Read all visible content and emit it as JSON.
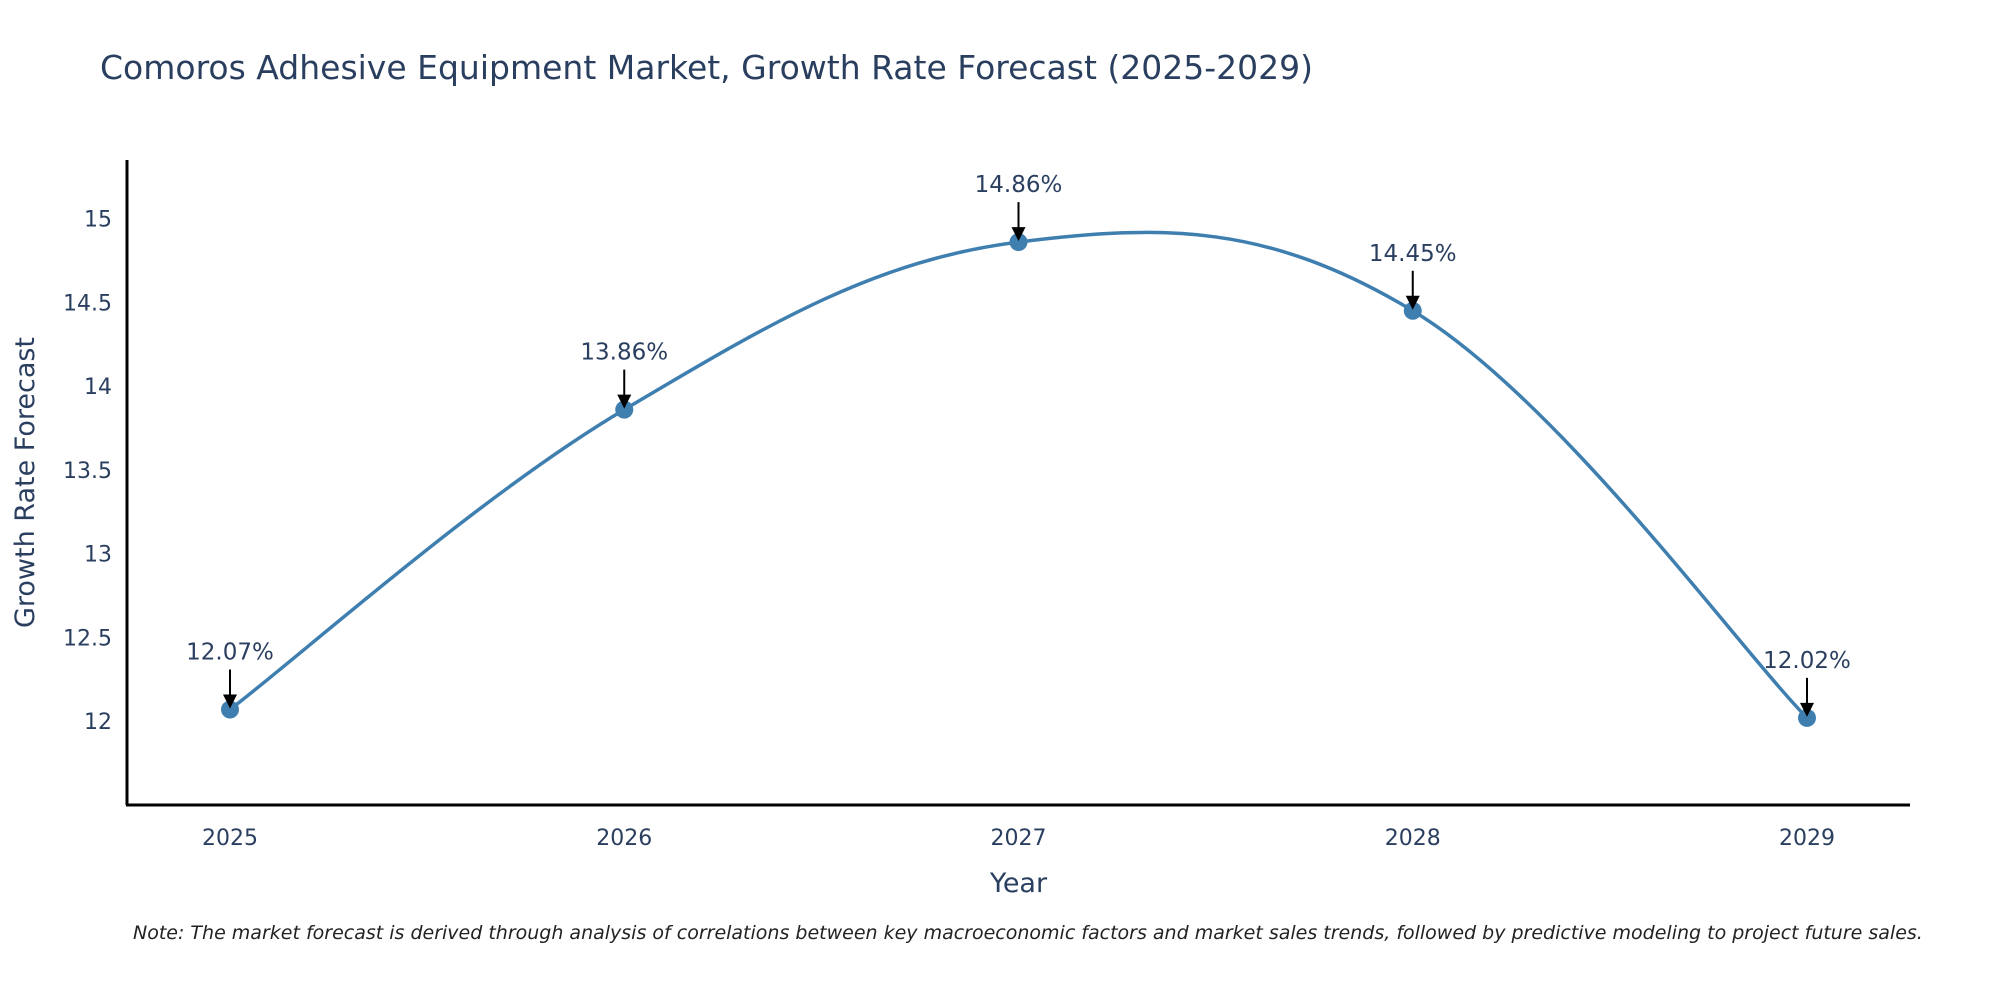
{
  "chart_data": {
    "type": "line",
    "title": "Comoros Adhesive Equipment Market, Growth Rate Forecast (2025-2029)",
    "xlabel": "Year",
    "ylabel": "Growth Rate Forecast",
    "categories": [
      "2025",
      "2026",
      "2027",
      "2028",
      "2029"
    ],
    "series": [
      {
        "name": "Growth Rate Forecast",
        "values": [
          12.07,
          13.86,
          14.86,
          14.45,
          12.02
        ],
        "labels": [
          "12.07%",
          "13.86%",
          "14.86%",
          "14.45%",
          "12.02%"
        ]
      }
    ],
    "ylim": [
      11.5,
      15.35
    ],
    "yticks": [
      12,
      12.5,
      13,
      13.5,
      14,
      14.5,
      15
    ],
    "ytick_labels": [
      "12",
      "12.5",
      "13",
      "13.5",
      "14",
      "14.5",
      "15"
    ],
    "line_color": "#3f7fb0",
    "axis_color": "#000000",
    "grid": false,
    "line_shape": "spline",
    "note": "Note: The market forecast is derived through analysis of correlations between key macroeconomic factors and market sales trends, followed by predictive modeling to project future sales."
  }
}
